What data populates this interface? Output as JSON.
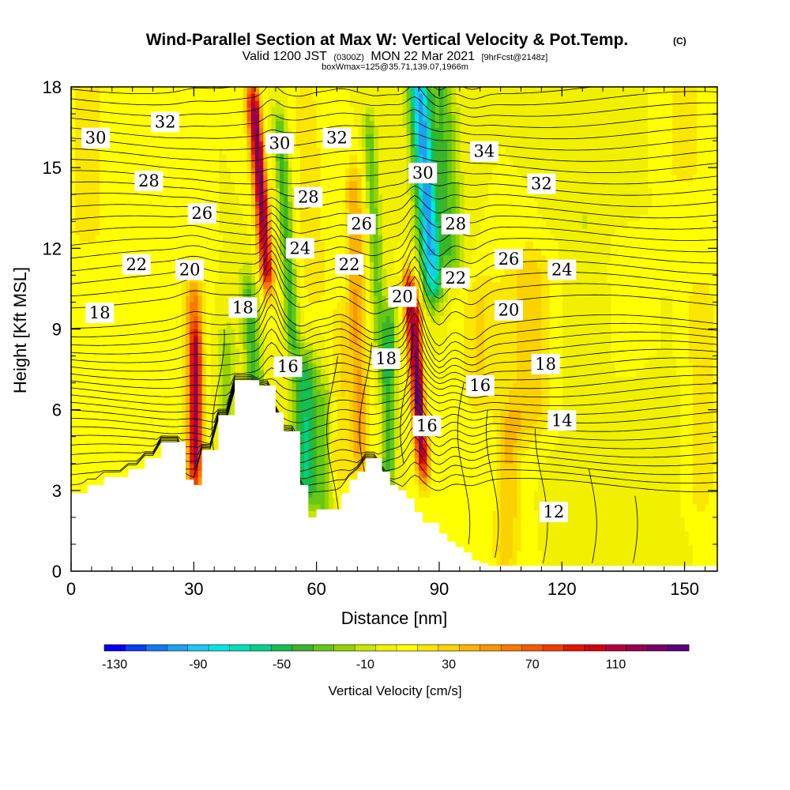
{
  "chart_data": {
    "type": "heatmap",
    "title": "Wind-Parallel Section at Max W: Vertical Velocity & Pot.Temp.",
    "copyright": "(C)",
    "subtitle_main_a": "Valid 1200 JST",
    "subtitle_zulu": "(0300Z)",
    "subtitle_main_b": "MON 22 Mar 2021",
    "subtitle_fcst": "[9hrFcst@2148z]",
    "subtitle2": "boxWmax=125@35.71,139.07,1966m",
    "xlabel": "Distance [nm]",
    "ylabel": "Height [Kft MSL]",
    "xlim": [
      0,
      158
    ],
    "ylim": [
      0,
      18
    ],
    "x_ticks": [
      "0",
      "30",
      "60",
      "90",
      "120",
      "150"
    ],
    "y_ticks": [
      "0",
      "3",
      "6",
      "9",
      "12",
      "15",
      "18"
    ],
    "colorbar": {
      "label": "Vertical Velocity [cm/s]",
      "tick_labels": [
        "-130",
        "-90",
        "-50",
        "-10",
        "30",
        "70",
        "110"
      ],
      "colors": [
        "#0000f0",
        "#0a3cf0",
        "#1478f0",
        "#1ea0f0",
        "#1ec8f0",
        "#00e6e6",
        "#00e0b4",
        "#00d28c",
        "#14be50",
        "#3cb428",
        "#64c814",
        "#96d200",
        "#c8e600",
        "#f0f000",
        "#ffff00",
        "#fae600",
        "#fad200",
        "#fab400",
        "#fa9600",
        "#fa7800",
        "#f55a00",
        "#f03c00",
        "#e61400",
        "#d20014",
        "#b4003c",
        "#960050",
        "#780064",
        "#5a007a"
      ]
    },
    "vertical_velocity_features": [
      {
        "x": 12,
        "value": 10
      },
      {
        "x": 30,
        "value": 50
      },
      {
        "x": 44,
        "value": -40
      },
      {
        "x": 49,
        "value": 125
      },
      {
        "x": 54,
        "value": -50
      },
      {
        "x": 57,
        "value": -60
      },
      {
        "x": 70,
        "value": 50
      },
      {
        "x": 78,
        "value": -50
      },
      {
        "x": 85,
        "value": 120
      },
      {
        "x": 88,
        "value": -90
      },
      {
        "x": 112,
        "value": 35
      },
      {
        "x": 125,
        "value": -10
      },
      {
        "x": 140,
        "value": 10
      }
    ],
    "terrain_x": [
      0,
      2,
      4,
      6,
      8,
      10,
      12,
      14,
      16,
      18,
      20,
      22,
      24,
      26,
      28,
      30,
      32,
      34,
      36,
      38,
      40,
      42,
      44,
      46,
      48,
      50,
      52,
      54,
      56,
      58,
      60,
      62,
      64,
      66,
      68,
      70,
      72,
      74,
      76,
      78,
      80,
      82,
      84,
      86,
      88,
      90,
      92,
      94,
      96,
      98,
      100,
      102,
      104,
      106,
      108,
      110,
      112,
      114,
      116,
      118,
      120,
      122,
      124,
      126,
      128,
      130,
      132,
      134,
      136,
      138,
      140,
      142,
      144,
      146,
      148,
      150,
      152,
      154,
      156,
      158
    ],
    "terrain_kft": [
      2.9,
      2.9,
      3.2,
      3.2,
      3.5,
      3.5,
      3.5,
      3.8,
      3.8,
      4.2,
      4.2,
      4.8,
      4.8,
      4.8,
      3.4,
      3.2,
      4.5,
      4.5,
      5.8,
      5.8,
      7.1,
      7.1,
      7.1,
      6.9,
      6.9,
      5.9,
      5.2,
      5.2,
      3.2,
      2.0,
      2.3,
      2.3,
      2.3,
      2.9,
      3.4,
      3.7,
      4.2,
      4.2,
      3.7,
      3.2,
      3.0,
      2.7,
      2.2,
      1.8,
      1.8,
      1.4,
      1.1,
      0.9,
      0.7,
      0.4,
      0.3,
      0.2,
      0.2,
      0.2,
      0.2,
      0.2,
      0.2,
      0.2,
      0.2,
      0.2,
      0.2,
      0.2,
      0.2,
      0.2,
      0.2,
      0.2,
      0.2,
      0.2,
      0.2,
      0.2,
      0.2,
      0.2,
      0.2,
      0.2,
      0.2,
      0.2,
      0.2,
      0.2,
      0.2,
      0.2
    ],
    "theta_contour_labels": [
      {
        "text": "30",
        "x": 6,
        "y": 16.1
      },
      {
        "text": "32",
        "x": 23,
        "y": 16.7
      },
      {
        "text": "28",
        "x": 19,
        "y": 14.5
      },
      {
        "text": "26",
        "x": 32,
        "y": 13.3
      },
      {
        "text": "22",
        "x": 16,
        "y": 11.4
      },
      {
        "text": "20",
        "x": 29,
        "y": 11.2
      },
      {
        "text": "18",
        "x": 7,
        "y": 9.6
      },
      {
        "text": "18",
        "x": 42,
        "y": 9.8
      },
      {
        "text": "16",
        "x": 53,
        "y": 7.6
      },
      {
        "text": "30",
        "x": 51,
        "y": 15.9
      },
      {
        "text": "32",
        "x": 65,
        "y": 16.1
      },
      {
        "text": "28",
        "x": 58,
        "y": 13.9
      },
      {
        "text": "24",
        "x": 56,
        "y": 12.0
      },
      {
        "text": "26",
        "x": 71,
        "y": 12.9
      },
      {
        "text": "22",
        "x": 68,
        "y": 11.4
      },
      {
        "text": "20",
        "x": 81,
        "y": 10.2
      },
      {
        "text": "18",
        "x": 77,
        "y": 7.9
      },
      {
        "text": "16",
        "x": 87,
        "y": 5.4
      },
      {
        "text": "30",
        "x": 86,
        "y": 14.8
      },
      {
        "text": "34",
        "x": 101,
        "y": 15.6
      },
      {
        "text": "28",
        "x": 94,
        "y": 12.9
      },
      {
        "text": "26",
        "x": 107,
        "y": 11.6
      },
      {
        "text": "22",
        "x": 94,
        "y": 10.9
      },
      {
        "text": "20",
        "x": 107,
        "y": 9.7
      },
      {
        "text": "32",
        "x": 115,
        "y": 14.4
      },
      {
        "text": "24",
        "x": 120,
        "y": 11.2
      },
      {
        "text": "18",
        "x": 116,
        "y": 7.7
      },
      {
        "text": "16",
        "x": 100,
        "y": 6.9
      },
      {
        "text": "14",
        "x": 120,
        "y": 5.6
      },
      {
        "text": "12",
        "x": 118,
        "y": 2.2
      }
    ]
  }
}
